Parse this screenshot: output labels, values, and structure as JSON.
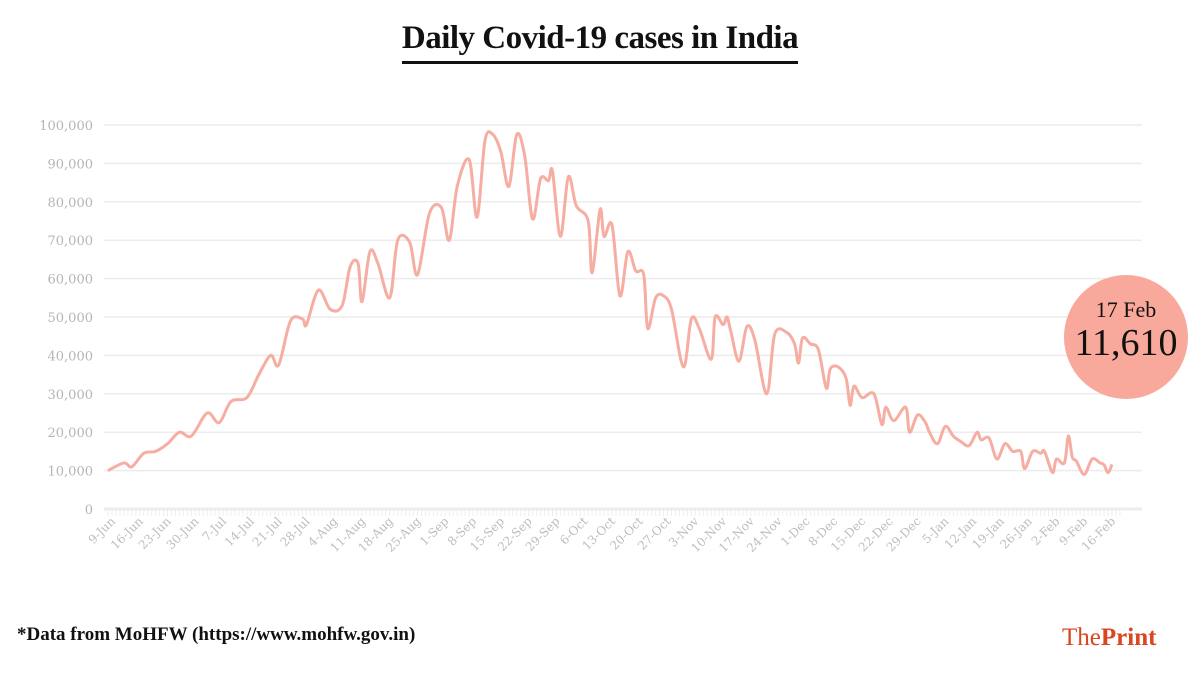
{
  "title": "Daily Covid-19 cases in India",
  "badge": {
    "date": "17 Feb",
    "value": "11,610"
  },
  "footnote": "*Data from MoHFW (https://www.mohfw.gov.in)",
  "logo": {
    "part1": "The",
    "part2": "Print"
  },
  "colors": {
    "line": "#f6ada2",
    "badge": "#f9a99b",
    "grid": "#ececec",
    "logo": "#d9461f"
  },
  "chart_data": {
    "type": "line",
    "title": "Daily Covid-19 cases in India",
    "xlabel": "",
    "ylabel": "",
    "x_unit": "days since 9-Jun",
    "ylim": [
      0,
      100000
    ],
    "yticks": [
      0,
      10000,
      20000,
      30000,
      40000,
      50000,
      60000,
      70000,
      80000,
      90000,
      100000
    ],
    "ytick_labels": [
      "0",
      "10,000",
      "20,000",
      "30,000",
      "40,000",
      "50,000",
      "60,000",
      "70,000",
      "80,000",
      "90,000",
      "100,000"
    ],
    "xticks": [
      "9-Jun",
      "16-Jun",
      "23-Jun",
      "30-Jun",
      "7-Jul",
      "14-Jul",
      "21-Jul",
      "28-Jul",
      "4-Aug",
      "11-Aug",
      "18-Aug",
      "25-Aug",
      "1-Sep",
      "8-Sep",
      "15-Sep",
      "22-Sep",
      "29-Sep",
      "6-Oct",
      "13-Oct",
      "20-Oct",
      "27-Oct",
      "3-Nov",
      "10-Nov",
      "17-Nov",
      "24-Nov",
      "1-Dec",
      "8-Dec",
      "15-Dec",
      "22-Dec",
      "29-Dec",
      "5-Jan",
      "12-Jan",
      "19-Jan",
      "26-Jan",
      "2-Feb",
      "9-Feb",
      "16-Feb"
    ],
    "grid": true,
    "series": [
      {
        "name": "Daily cases",
        "points": [
          [
            0,
            10000
          ],
          [
            4,
            12000
          ],
          [
            6,
            11000
          ],
          [
            9,
            14500
          ],
          [
            12,
            15000
          ],
          [
            15,
            17000
          ],
          [
            18,
            20000
          ],
          [
            21,
            19000
          ],
          [
            25,
            25000
          ],
          [
            28,
            22500
          ],
          [
            31,
            28000
          ],
          [
            35,
            29000
          ],
          [
            38,
            35000
          ],
          [
            41,
            40000
          ],
          [
            43,
            37500
          ],
          [
            46,
            49000
          ],
          [
            49,
            49500
          ],
          [
            50,
            48000
          ],
          [
            53,
            57000
          ],
          [
            56,
            52000
          ],
          [
            59,
            53000
          ],
          [
            61,
            63000
          ],
          [
            63,
            64000
          ],
          [
            64,
            54000
          ],
          [
            66,
            67000
          ],
          [
            68,
            64000
          ],
          [
            71,
            55000
          ],
          [
            73,
            70000
          ],
          [
            76,
            69500
          ],
          [
            78,
            61000
          ],
          [
            81,
            77000
          ],
          [
            84,
            78500
          ],
          [
            86,
            70000
          ],
          [
            88,
            84000
          ],
          [
            91,
            91000
          ],
          [
            93,
            76000
          ],
          [
            95,
            96000
          ],
          [
            97,
            97500
          ],
          [
            99,
            93000
          ],
          [
            101,
            84000
          ],
          [
            103,
            97500
          ],
          [
            105,
            92000
          ],
          [
            107,
            75500
          ],
          [
            109,
            86000
          ],
          [
            111,
            85500
          ],
          [
            112,
            88000
          ],
          [
            114,
            71000
          ],
          [
            116,
            86500
          ],
          [
            118,
            79000
          ],
          [
            121,
            75000
          ],
          [
            122,
            61500
          ],
          [
            124,
            78000
          ],
          [
            125,
            71000
          ],
          [
            127,
            74000
          ],
          [
            129,
            55500
          ],
          [
            131,
            67000
          ],
          [
            133,
            62000
          ],
          [
            135,
            61000
          ],
          [
            136,
            47000
          ],
          [
            138,
            55000
          ],
          [
            140,
            55500
          ],
          [
            142,
            52000
          ],
          [
            145,
            37000
          ],
          [
            147,
            49500
          ],
          [
            149,
            47000
          ],
          [
            152,
            39000
          ],
          [
            153,
            50000
          ],
          [
            155,
            48000
          ],
          [
            156,
            50000
          ],
          [
            157,
            46000
          ],
          [
            159,
            38500
          ],
          [
            161,
            47500
          ],
          [
            163,
            44000
          ],
          [
            166,
            30000
          ],
          [
            168,
            45500
          ],
          [
            171,
            46000
          ],
          [
            173,
            43000
          ],
          [
            174,
            38000
          ],
          [
            175,
            44500
          ],
          [
            177,
            43000
          ],
          [
            179,
            41500
          ],
          [
            181,
            31500
          ],
          [
            182,
            36500
          ],
          [
            184,
            37000
          ],
          [
            186,
            34000
          ],
          [
            187,
            27000
          ],
          [
            188,
            32000
          ],
          [
            190,
            29000
          ],
          [
            193,
            30000
          ],
          [
            195,
            22000
          ],
          [
            196,
            26500
          ],
          [
            198,
            23000
          ],
          [
            201,
            26500
          ],
          [
            202,
            20000
          ],
          [
            204,
            24500
          ],
          [
            206,
            22500
          ],
          [
            207,
            20000
          ],
          [
            209,
            17000
          ],
          [
            211,
            21500
          ],
          [
            213,
            19000
          ],
          [
            215,
            17500
          ],
          [
            217,
            16500
          ],
          [
            219,
            20000
          ],
          [
            220,
            18000
          ],
          [
            222,
            18500
          ],
          [
            224,
            13000
          ],
          [
            226,
            17000
          ],
          [
            228,
            15000
          ],
          [
            230,
            15000
          ],
          [
            231,
            10500
          ],
          [
            233,
            15000
          ],
          [
            235,
            14500
          ],
          [
            236,
            15000
          ],
          [
            238,
            9500
          ],
          [
            239,
            13000
          ],
          [
            241,
            12000
          ],
          [
            242,
            19000
          ],
          [
            243,
            13500
          ],
          [
            244,
            12500
          ],
          [
            246,
            9000
          ],
          [
            248,
            13000
          ],
          [
            250,
            12000
          ],
          [
            251,
            11500
          ],
          [
            252,
            9500
          ],
          [
            253,
            11610
          ]
        ]
      }
    ]
  }
}
